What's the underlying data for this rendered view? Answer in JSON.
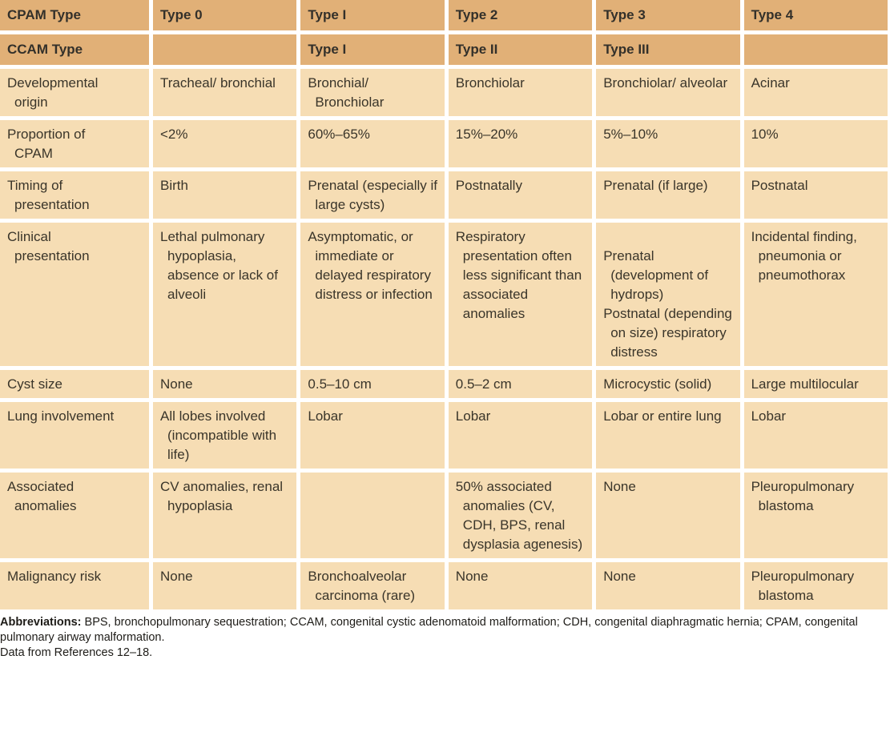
{
  "table": {
    "header_rows": [
      {
        "label": "CPAM Type",
        "cells": [
          "Type 0",
          "Type I",
          "Type 2",
          "Type 3",
          "Type 4"
        ]
      },
      {
        "label": "CCAM Type",
        "cells": [
          "",
          "Type I",
          "Type II",
          "Type III",
          ""
        ]
      }
    ],
    "rows": [
      {
        "label": "Developmental origin",
        "cells": [
          "Tracheal/ bronchial",
          "Bronchial/ Bronchiolar",
          "Bronchiolar",
          "Bronchiolar/ alveolar",
          "Acinar"
        ]
      },
      {
        "label": "Proportion of CPAM",
        "cells": [
          "<2%",
          "60%–65%",
          "15%–20%",
          "5%–10%",
          "10%"
        ]
      },
      {
        "label": "Timing of presentation",
        "cells": [
          "Birth",
          "Prenatal (especially if large cysts)",
          "Postnatally",
          "Prenatal (if large)",
          "Postnatal"
        ]
      },
      {
        "label": "Clinical presentation",
        "cells": [
          "Lethal pulmonary hypoplasia, absence or lack of alveoli",
          "Asymptomatic, or immediate or delayed respiratory distress or infection",
          "Respiratory presentation often less significant than associated anomalies",
          "\nPrenatal (development of hydrops)\nPostnatal (depending on size) respiratory distress",
          "Incidental finding, pneumonia or pneumothorax"
        ]
      },
      {
        "label": "Cyst size",
        "cells": [
          "None",
          "0.5–10 cm",
          "0.5–2 cm",
          "Microcystic (solid)",
          "Large multilocular"
        ]
      },
      {
        "label": "Lung involvement",
        "cells": [
          "All lobes involved (incompatible with life)",
          "Lobar",
          "Lobar",
          "Lobar or entire lung",
          "Lobar"
        ]
      },
      {
        "label": "Associated anomalies",
        "cells": [
          "CV anomalies, renal hypoplasia",
          "",
          "50% associated anomalies (CV, CDH, BPS, renal dysplasia agenesis)",
          "None",
          "Pleuropulmonary blastoma"
        ]
      },
      {
        "label": "Malignancy risk",
        "cells": [
          "None",
          "Bronchoalveolar carcinoma (rare)",
          "None",
          "None",
          "Pleuropulmonary blastoma"
        ]
      }
    ]
  },
  "footnotes": {
    "abbreviations_label": "Abbreviations:",
    "abbreviations_text": " BPS, bronchopulmonary sequestration; CCAM, congenital cystic adenomatoid malformation; CDH, congenital diaphragmatic hernia; CPAM, congenital pulmonary airway malformation.",
    "data_source": "Data from References 12–18."
  },
  "colors": {
    "header_bg": "#e1b077",
    "body_bg": "#f6ddb4",
    "gap": "#ffffff",
    "text": "#3a352a"
  }
}
